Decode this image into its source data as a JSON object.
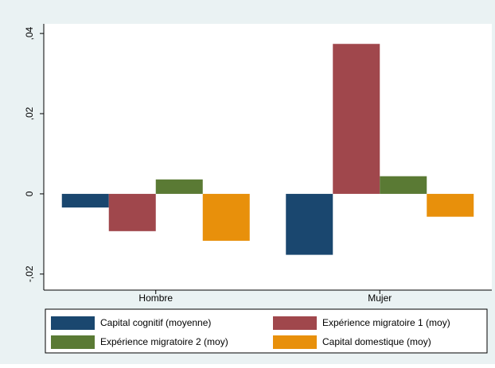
{
  "chart_data": {
    "type": "bar",
    "categories": [
      "Hombre",
      "Mujer"
    ],
    "series": [
      {
        "name": "Capital cognitif (moyenne)",
        "color": "#1a476f",
        "values": [
          -0.0034,
          -0.0152
        ]
      },
      {
        "name": "Expérience migratoire 1 (moy)",
        "color": "#a0474c",
        "values": [
          -0.0093,
          0.0374
        ]
      },
      {
        "name": "Expérience migratoire 2 (moy)",
        "color": "#5a7a34",
        "values": [
          0.0036,
          0.0044
        ]
      },
      {
        "name": "Capital domestique (moy)",
        "color": "#e8900b",
        "values": [
          -0.0117,
          -0.0057
        ]
      }
    ],
    "ylim": [
      -0.024,
      0.0424
    ],
    "yticks": [
      {
        "value": -0.02,
        "label": "-,02"
      },
      0,
      {
        "value": 0.02,
        "label": ",02"
      },
      {
        "value": 0.04,
        "label": ",04"
      }
    ],
    "grid": false
  }
}
